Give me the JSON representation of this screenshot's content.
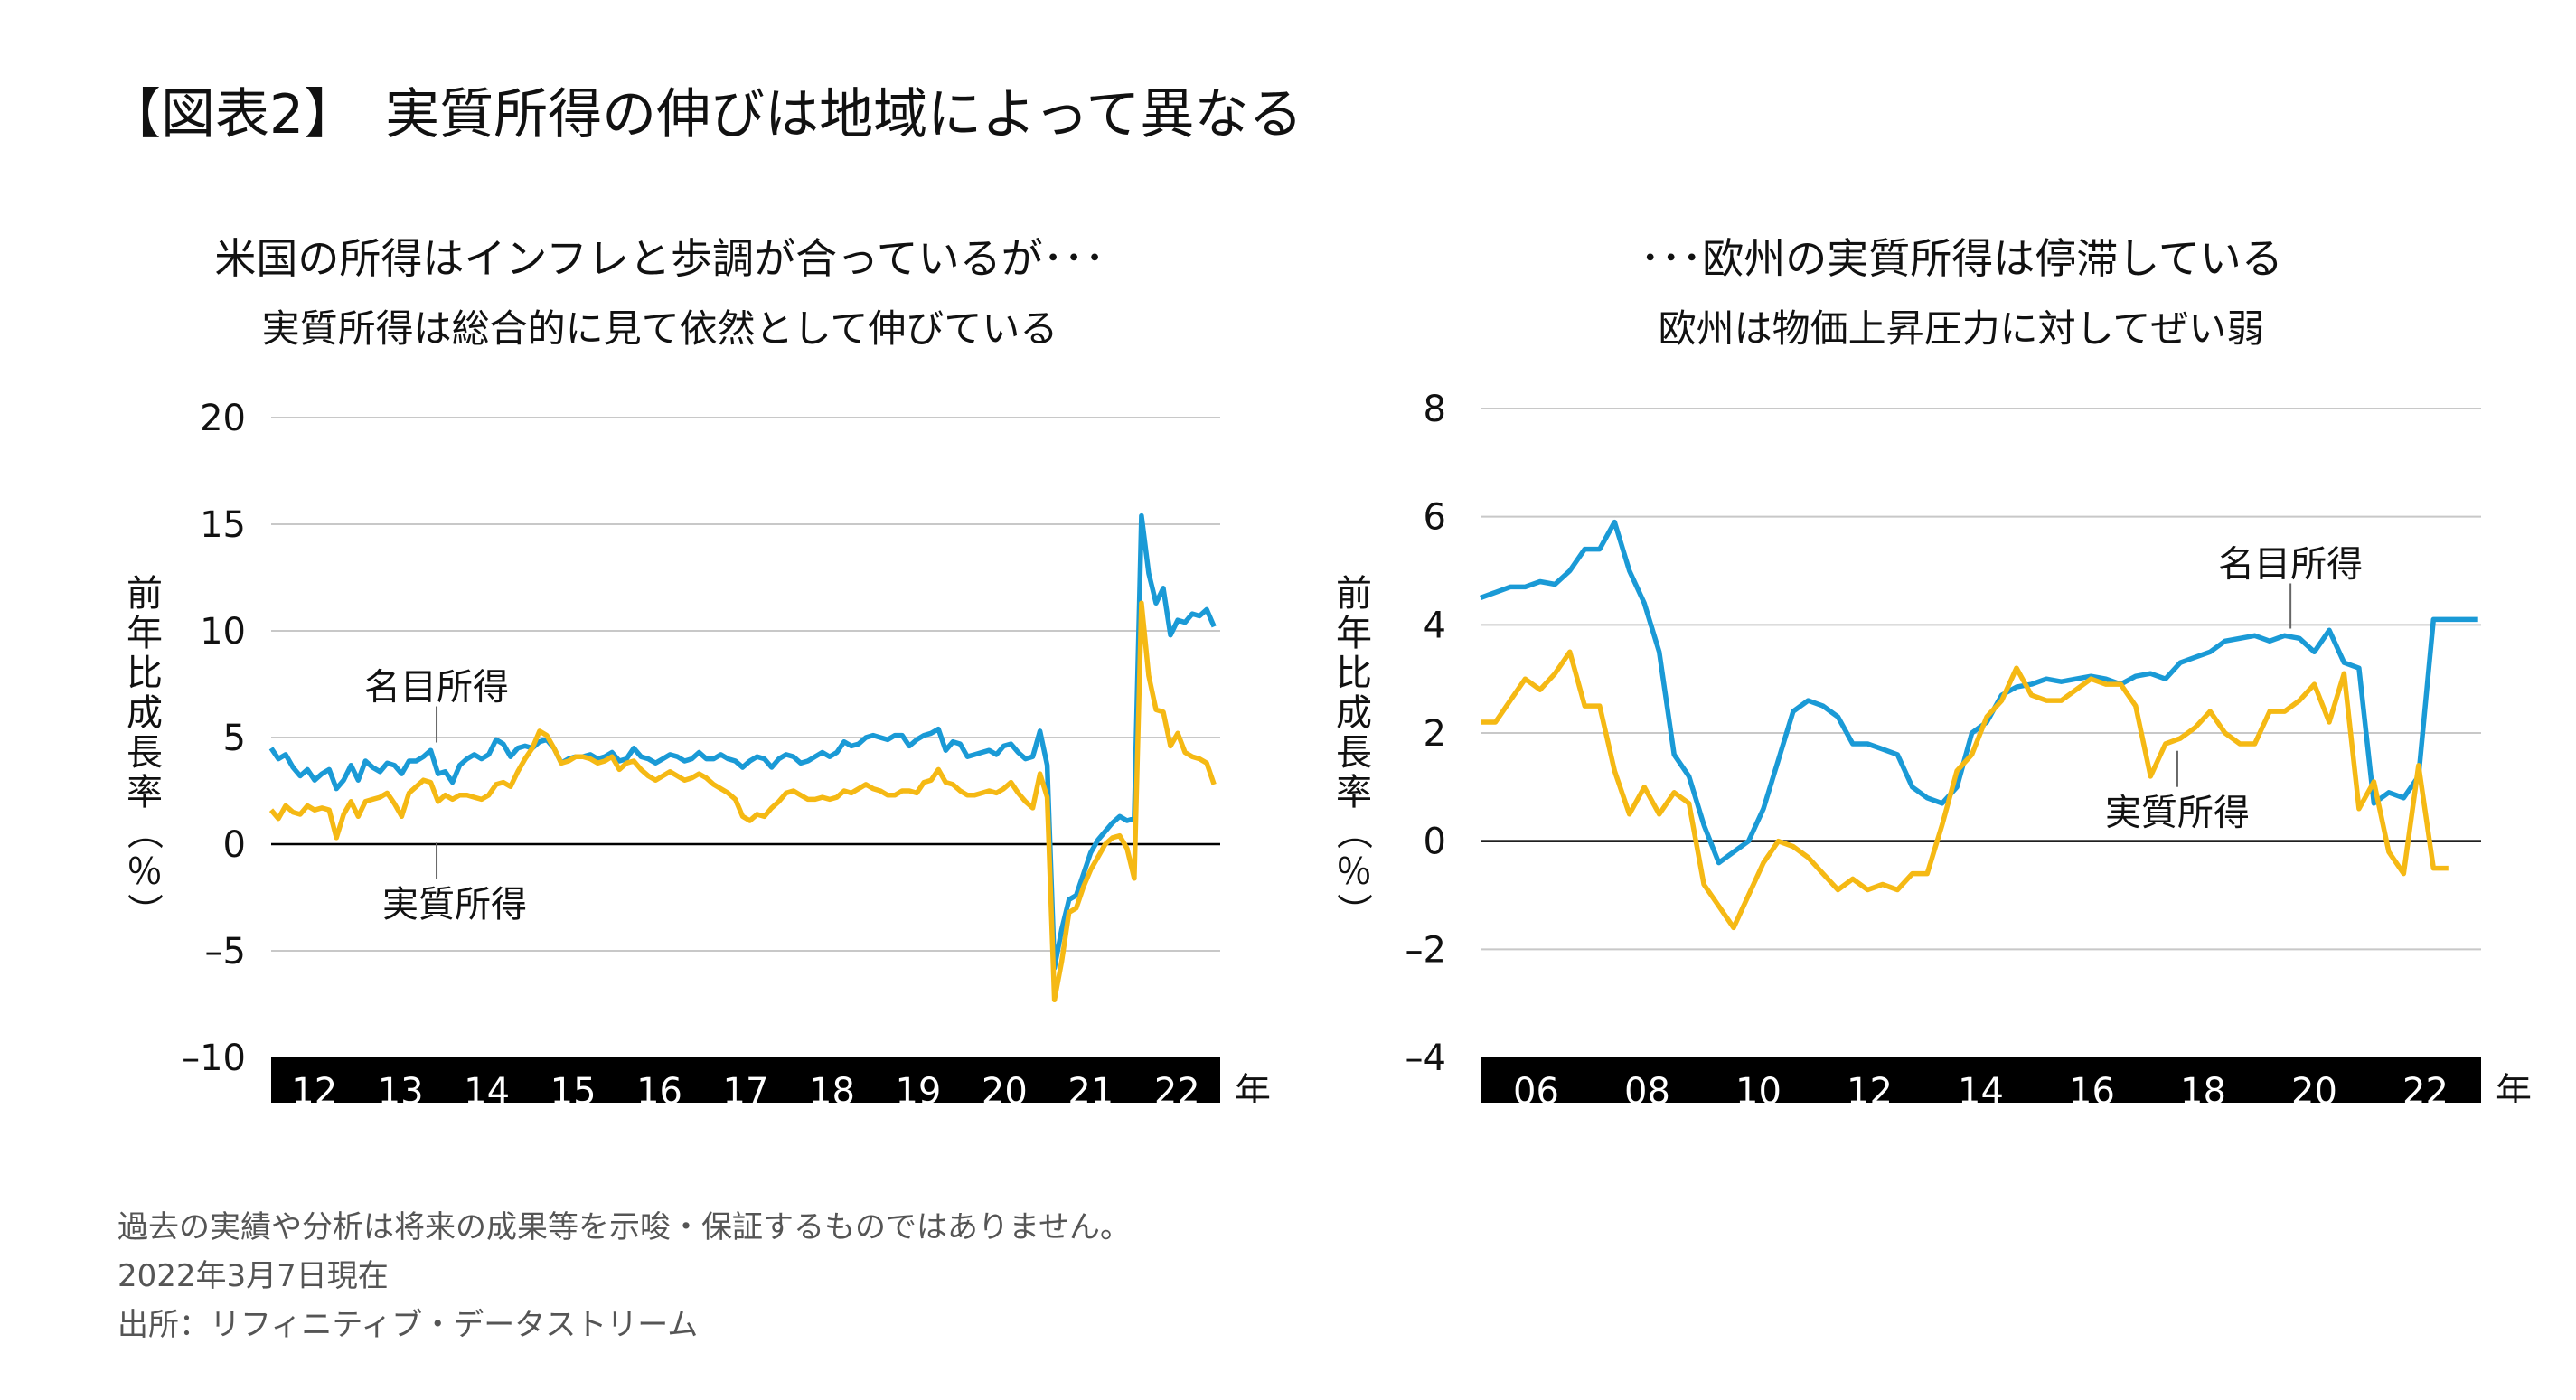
{
  "main_title": "【図表2】　実質所得の伸びは地域によって異なる",
  "footnotes": [
    "過去の実績や分析は将来の成果等を示唆・保証するものではありません。",
    "2022年3月7日現在",
    "出所：リフィニティブ・データストリーム"
  ],
  "colors": {
    "nominal": "#1a9ad6",
    "real": "#f5b914",
    "grid": "#c8c8c8",
    "band": "#000000"
  },
  "chart_data": [
    {
      "type": "line",
      "title": "米国の所得はインフレと歩調が合っているが･･･",
      "subtitle": "実質所得は総合的に見て依然として伸びている",
      "ylabel": "前年比成長率（％）",
      "xunit": "年",
      "ylim": [
        -10,
        20
      ],
      "yticks": [
        "20",
        "15",
        "10",
        "5",
        "0",
        "–5",
        "–10"
      ],
      "xticks": [
        "12",
        "13",
        "14",
        "15",
        "16",
        "17",
        "18",
        "19",
        "20",
        "21",
        "22"
      ],
      "x_start": 2012.0,
      "x_end": 2022.9,
      "grid": true,
      "series": [
        {
          "name": "名目所得",
          "step": 0.0833,
          "values": [
            4.5,
            4.0,
            4.2,
            3.6,
            3.2,
            3.5,
            3.0,
            3.3,
            3.5,
            2.6,
            3.0,
            3.7,
            3.0,
            3.9,
            3.6,
            3.4,
            3.8,
            3.7,
            3.3,
            3.9,
            3.9,
            4.1,
            4.4,
            3.3,
            3.4,
            2.9,
            3.7,
            4.0,
            4.2,
            4.0,
            4.2,
            4.9,
            4.7,
            4.1,
            4.5,
            4.6,
            4.5,
            4.8,
            4.9,
            4.5,
            3.8,
            4.0,
            4.1,
            4.1,
            4.2,
            4.0,
            4.1,
            4.3,
            3.9,
            4.0,
            4.5,
            4.1,
            4.0,
            3.8,
            4.0,
            4.2,
            4.1,
            3.9,
            4.0,
            4.3,
            4.0,
            4.0,
            4.2,
            4.0,
            3.9,
            3.6,
            3.9,
            4.1,
            4.0,
            3.6,
            4.0,
            4.2,
            4.1,
            3.8,
            3.9,
            4.1,
            4.3,
            4.1,
            4.3,
            4.8,
            4.6,
            4.7,
            5.0,
            5.1,
            5.0,
            4.9,
            5.1,
            5.1,
            4.6,
            4.9,
            5.1,
            5.2,
            5.4,
            4.4,
            4.8,
            4.7,
            4.1,
            4.2,
            4.3,
            4.4,
            4.2,
            4.6,
            4.7,
            4.3,
            4.0,
            4.1,
            5.3,
            3.7,
            -5.8,
            -4.0,
            -2.6,
            -2.4,
            -1.4,
            -0.4,
            0.2,
            0.6,
            1.0,
            1.3,
            1.1,
            1.2,
            15.4,
            12.7,
            11.3,
            12.0,
            9.8,
            10.5,
            10.4,
            10.8,
            10.7,
            11.0,
            10.2
          ]
        },
        {
          "name": "実質所得",
          "step": 0.0833,
          "values": [
            1.6,
            1.2,
            1.8,
            1.5,
            1.4,
            1.8,
            1.6,
            1.7,
            1.6,
            0.3,
            1.4,
            2.0,
            1.3,
            2.0,
            2.1,
            2.2,
            2.4,
            1.9,
            1.3,
            2.4,
            2.7,
            3.0,
            2.9,
            2.0,
            2.3,
            2.1,
            2.3,
            2.3,
            2.2,
            2.1,
            2.3,
            2.8,
            2.9,
            2.7,
            3.4,
            4.0,
            4.5,
            5.3,
            5.1,
            4.5,
            3.8,
            3.9,
            4.1,
            4.1,
            4.0,
            3.8,
            3.9,
            4.1,
            3.5,
            3.8,
            3.9,
            3.5,
            3.2,
            3.0,
            3.2,
            3.4,
            3.2,
            3.0,
            3.1,
            3.3,
            3.1,
            2.8,
            2.6,
            2.4,
            2.1,
            1.3,
            1.1,
            1.4,
            1.3,
            1.7,
            2.0,
            2.4,
            2.5,
            2.3,
            2.1,
            2.1,
            2.2,
            2.1,
            2.2,
            2.5,
            2.4,
            2.6,
            2.8,
            2.6,
            2.5,
            2.3,
            2.3,
            2.5,
            2.5,
            2.4,
            2.9,
            3.0,
            3.5,
            2.9,
            2.8,
            2.5,
            2.3,
            2.3,
            2.4,
            2.5,
            2.4,
            2.6,
            2.9,
            2.4,
            2.0,
            1.7,
            3.3,
            2.2,
            -7.3,
            -5.5,
            -3.2,
            -3.0,
            -2.0,
            -1.2,
            -0.6,
            0.0,
            0.3,
            0.4,
            -0.2,
            -1.6,
            11.3,
            7.9,
            6.3,
            6.2,
            4.6,
            5.2,
            4.3,
            4.1,
            4.0,
            3.8,
            2.8
          ]
        }
      ],
      "annotations": [
        {
          "text": "名目所得",
          "x": 2013.9,
          "y": 6.8,
          "series": "名目所得"
        },
        {
          "text": "実質所得",
          "x": 2013.9,
          "y": -3.4,
          "series": "実質所得"
        }
      ]
    },
    {
      "type": "line",
      "title": "･･･欧州の実質所得は停滞している",
      "subtitle": "欧州は物価上昇圧力に対してぜい弱",
      "ylabel": "前年比成長率（％）",
      "xunit": "年",
      "ylim": [
        -4,
        8
      ],
      "yticks": [
        "8",
        "6",
        "4",
        "2",
        "0",
        "–2",
        "–4"
      ],
      "xticks": [
        "06",
        "08",
        "10",
        "12",
        "14",
        "16",
        "18",
        "20",
        "22"
      ],
      "x_start": 2006.0,
      "x_end": 2022.8,
      "grid": true,
      "series": [
        {
          "name": "名目所得",
          "step": 0.25,
          "values": [
            4.5,
            4.6,
            4.7,
            4.7,
            4.8,
            4.75,
            5.0,
            5.4,
            5.4,
            5.9,
            5.0,
            4.4,
            3.5,
            1.6,
            1.2,
            0.3,
            -0.4,
            -0.2,
            0.0,
            0.6,
            1.5,
            2.4,
            2.6,
            2.5,
            2.3,
            1.8,
            1.8,
            1.7,
            1.6,
            1.0,
            0.8,
            0.7,
            1.0,
            2.0,
            2.2,
            2.7,
            2.85,
            2.9,
            3.0,
            2.95,
            3.0,
            3.05,
            3.0,
            2.9,
            3.05,
            3.1,
            3.0,
            3.3,
            3.4,
            3.5,
            3.7,
            3.75,
            3.8,
            3.7,
            3.8,
            3.75,
            3.5,
            3.9,
            3.3,
            3.2,
            0.7,
            0.9,
            0.8,
            1.2,
            4.1,
            4.1,
            4.1,
            4.1
          ]
        },
        {
          "name": "実質所得",
          "step": 0.25,
          "values": [
            2.2,
            2.2,
            2.6,
            3.0,
            2.8,
            3.1,
            3.5,
            2.5,
            2.5,
            1.3,
            0.5,
            1.0,
            0.5,
            0.9,
            0.7,
            -0.8,
            -1.2,
            -1.6,
            -1.0,
            -0.4,
            0.0,
            -0.1,
            -0.3,
            -0.6,
            -0.9,
            -0.7,
            -0.9,
            -0.8,
            -0.9,
            -0.6,
            -0.6,
            0.3,
            1.3,
            1.6,
            2.3,
            2.6,
            3.2,
            2.7,
            2.6,
            2.6,
            2.8,
            3.0,
            2.9,
            2.9,
            2.5,
            1.2,
            1.8,
            1.9,
            2.1,
            2.4,
            2.0,
            1.8,
            1.8,
            2.4,
            2.4,
            2.6,
            2.9,
            2.2,
            3.1,
            0.6,
            1.1,
            -0.2,
            -0.6,
            1.4,
            -0.5,
            -0.5
          ]
        }
      ],
      "annotations": [
        {
          "text": "名目所得",
          "x": 2019.6,
          "y": 4.9,
          "series": "名目所得"
        },
        {
          "text": "実質所得",
          "x": 2017.7,
          "y": 0.3,
          "series": "実質所得"
        }
      ]
    }
  ]
}
